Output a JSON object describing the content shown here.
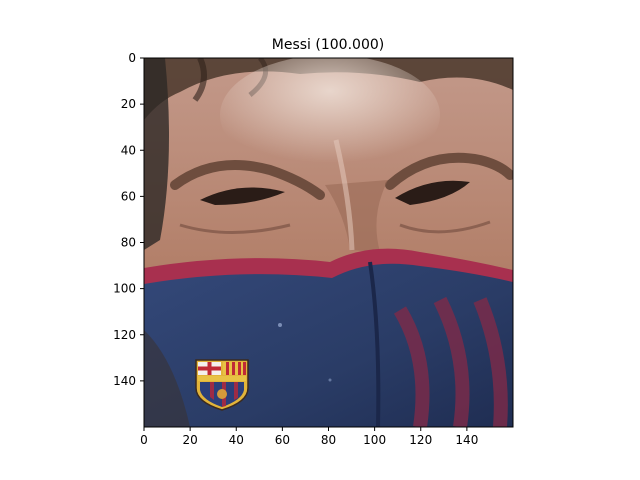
{
  "chart_data": {
    "type": "image",
    "title": "Messi (100.000)",
    "xlabel": "",
    "ylabel": "",
    "image_width": 160,
    "image_height": 160,
    "xlim": [
      0,
      160
    ],
    "ylim": [
      160,
      0
    ],
    "x_ticks": [
      0,
      20,
      40,
      60,
      80,
      100,
      120,
      140
    ],
    "y_ticks": [
      0,
      20,
      40,
      60,
      80,
      100,
      120,
      140
    ],
    "grid": false,
    "legend": "none",
    "content": "close-up of a face wearing a blue and red face mask with a club crest"
  },
  "colors": {
    "skin": "#b98a76",
    "skin_dark": "#6f4b3f",
    "hair": "#3a2b22",
    "mask_blue": "#2c3f6a",
    "mask_red": "#8e2a45",
    "background_dark": "#2d2825",
    "crest_yellow": "#e2b43a",
    "crest_red": "#c02a36"
  }
}
